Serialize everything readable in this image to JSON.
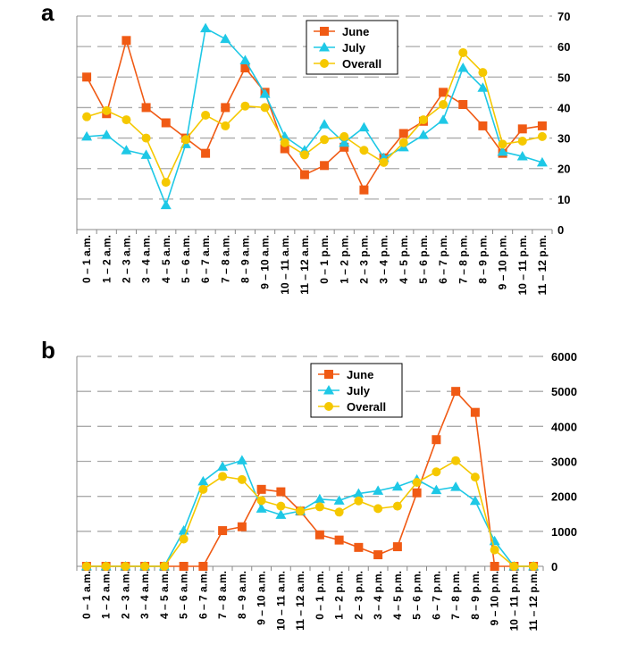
{
  "colors": {
    "June": "#f05a14",
    "July": "#1ec8e6",
    "Overall": "#f5c800",
    "grid": "#aaaaaa",
    "axis": "#888888"
  },
  "chart_data": [
    {
      "panel": "a",
      "type": "line",
      "categories": [
        "0 – 1 a.m.",
        "1 – 2 a.m.",
        "2 – 3 a.m.",
        "3 – 4 a.m.",
        "4 – 5 a.m.",
        "5 – 6 a.m.",
        "6 – 7 a.m.",
        "7 – 8 a.m.",
        "8 – 9 a.m.",
        "9 – 10 a.m.",
        "10 – 11 a.m.",
        "11 – 12 a.m.",
        "0 – 1 p.m.",
        "1 – 2 p.m.",
        "2 – 3 p.m.",
        "3 – 4 p.m.",
        "4 – 5 p.m.",
        "5 – 6 p.m.",
        "6 – 7 p.m.",
        "7 – 8 p.m.",
        "8 – 9 p.m.",
        "9 – 10 p.m.",
        "10 – 11 p.m.",
        "11 – 12 p.m."
      ],
      "ylim": [
        0,
        70
      ],
      "yticks": [
        0,
        10,
        20,
        30,
        40,
        50,
        60,
        70
      ],
      "grid": true,
      "legend": "top-center",
      "series": [
        {
          "name": "June",
          "marker": "square",
          "values": [
            50,
            38,
            62,
            40,
            35,
            30,
            25,
            40,
            53,
            45,
            26.5,
            18,
            21,
            27,
            13,
            23.5,
            31.5,
            35.5,
            45,
            41,
            34,
            25,
            33,
            34
          ]
        },
        {
          "name": "July",
          "marker": "triangle",
          "values": [
            30.5,
            31,
            26,
            24.5,
            8,
            28,
            66,
            62.5,
            55.5,
            44.5,
            30.5,
            26,
            34.5,
            28.5,
            33.5,
            23.5,
            27,
            31,
            36,
            53,
            46.5,
            25.5,
            24,
            22
          ]
        },
        {
          "name": "Overall",
          "marker": "circle",
          "values": [
            37,
            39,
            36,
            30,
            15.5,
            29.5,
            37.5,
            34,
            40.5,
            40,
            28.5,
            24.5,
            29.5,
            30.5,
            26,
            22,
            28.5,
            36,
            41,
            58,
            51.5,
            28,
            29,
            30.5
          ]
        }
      ]
    },
    {
      "panel": "b",
      "type": "line",
      "categories": [
        "0 – 1 a.m.",
        "1 – 2 a.m.",
        "2 – 3 a.m.",
        "3 – 4 a.m.",
        "4 – 5 a.m.",
        "5 – 6 a.m.",
        "6 – 7 a.m.",
        "7 – 8 a.m.",
        "8 – 9 a.m.",
        "9 – 10 a.m.",
        "10 – 11 a.m.",
        "11 – 12 a.m.",
        "0 – 1 p.m.",
        "1 – 2 p.m.",
        "2 – 3 p.m.",
        "3 – 4 p.m.",
        "4 – 5 p.m.",
        "5 – 6 p.m.",
        "6 – 7 p.m.",
        "7 – 8 p.m.",
        "8 – 9 p.m.",
        "9 – 10 p.m.",
        "10 – 11 p.m.",
        "11 – 12 p.m."
      ],
      "ylim": [
        0,
        6000
      ],
      "yticks": [
        0,
        1000,
        2000,
        3000,
        4000,
        5000,
        6000
      ],
      "grid": true,
      "legend": "top-center",
      "series": [
        {
          "name": "June",
          "marker": "square",
          "values": [
            0,
            0,
            0,
            0,
            0,
            0,
            0,
            1020,
            1130,
            2200,
            2130,
            1580,
            900,
            750,
            540,
            330,
            560,
            2100,
            3620,
            5000,
            4400,
            0,
            0,
            0
          ]
        },
        {
          "name": "July",
          "marker": "triangle",
          "values": [
            0,
            0,
            0,
            0,
            0,
            1020,
            2430,
            2850,
            3030,
            1650,
            1470,
            1580,
            1920,
            1880,
            2080,
            2160,
            2280,
            2480,
            2180,
            2270,
            1870,
            720,
            0,
            0
          ]
        },
        {
          "name": "Overall",
          "marker": "circle",
          "values": [
            0,
            0,
            0,
            0,
            0,
            780,
            2200,
            2570,
            2480,
            1880,
            1720,
            1580,
            1700,
            1550,
            1870,
            1650,
            1720,
            2400,
            2700,
            3020,
            2550,
            470,
            0,
            0
          ]
        }
      ]
    }
  ]
}
